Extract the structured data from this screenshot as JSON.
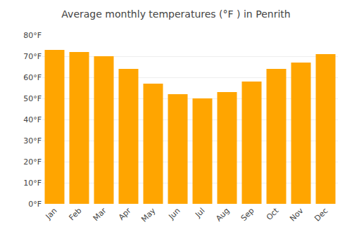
{
  "chart_data": {
    "type": "bar",
    "title": "Average monthly temperatures (°F ) in Penrith",
    "categories": [
      "Jan",
      "Feb",
      "Mar",
      "Apr",
      "May",
      "Jun",
      "Jul",
      "Aug",
      "Sep",
      "Oct",
      "Nov",
      "Dec"
    ],
    "values": [
      73,
      72,
      70,
      64,
      57,
      52,
      50,
      53,
      58,
      64,
      67,
      71
    ],
    "color": "#FFA500",
    "ylim": [
      0,
      80
    ],
    "yticks": [
      {
        "value": 0,
        "label": "0°F"
      },
      {
        "value": 10,
        "label": "10°F"
      },
      {
        "value": 20,
        "label": "20°F"
      },
      {
        "value": 30,
        "label": "30°F"
      },
      {
        "value": 40,
        "label": "40°F"
      },
      {
        "value": 50,
        "label": "50°F"
      },
      {
        "value": 60,
        "label": "60°F"
      },
      {
        "value": 70,
        "label": "70°F"
      },
      {
        "value": 80,
        "label": "80°F"
      }
    ],
    "grid": true
  }
}
